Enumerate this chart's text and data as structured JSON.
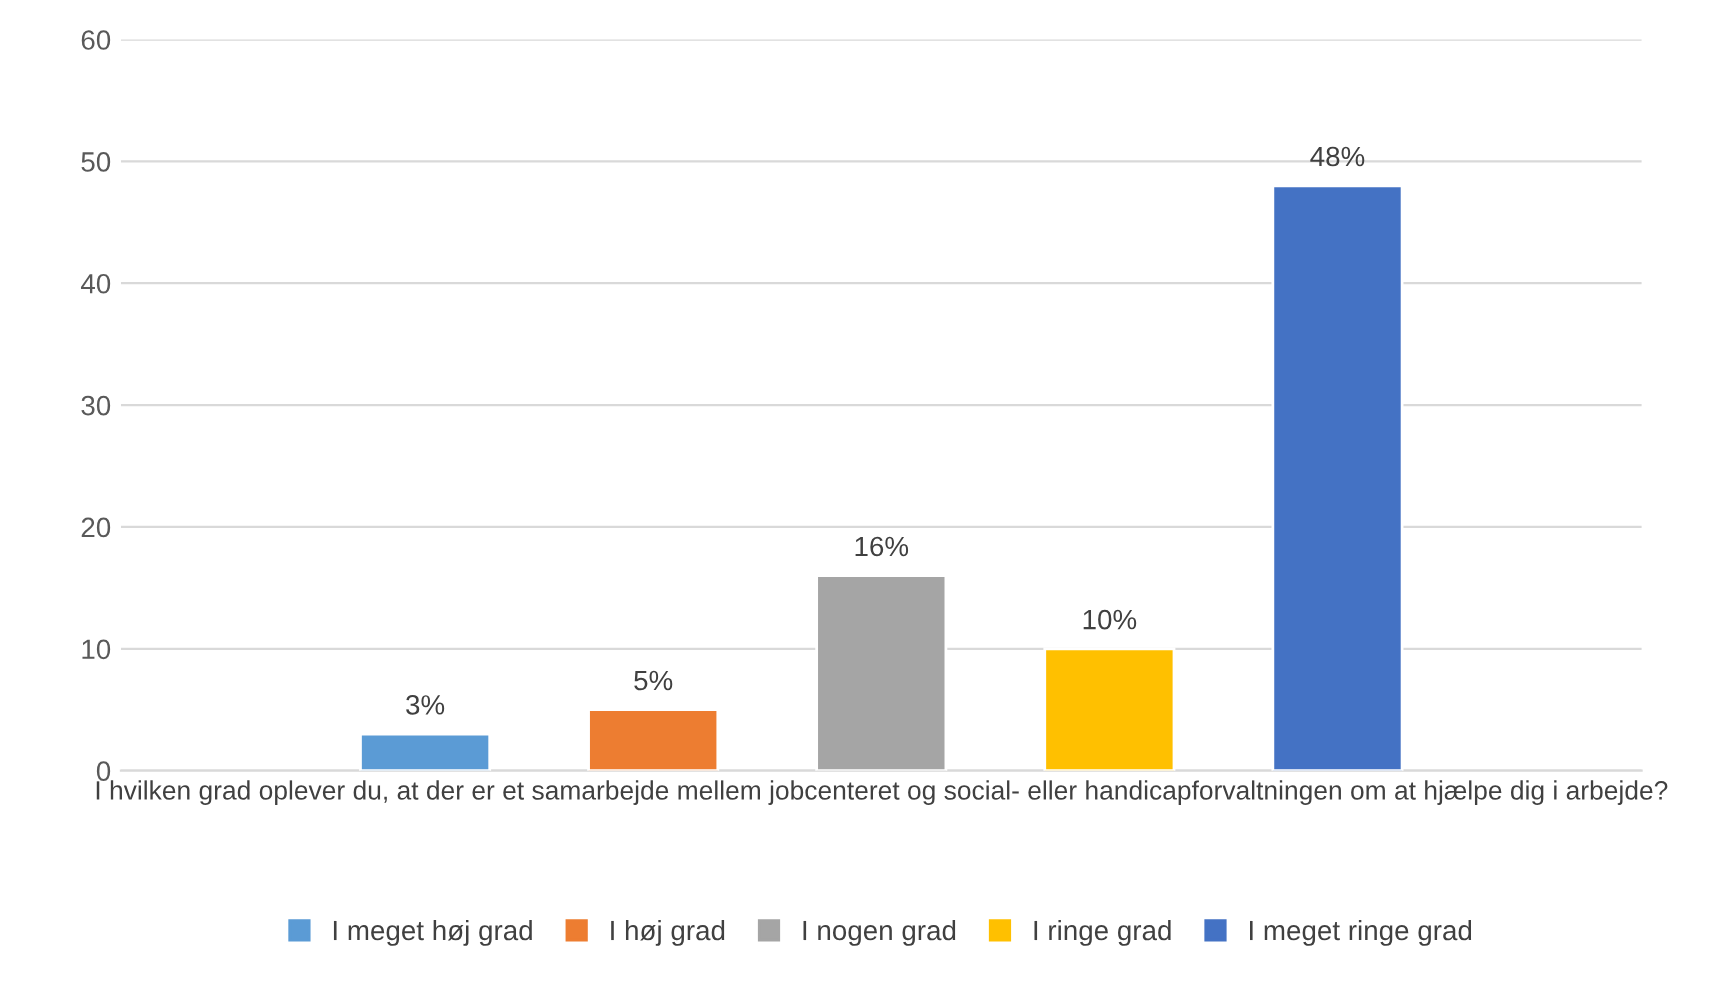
{
  "chart_data": {
    "type": "bar",
    "categories": [
      "I hvilken grad oplever du, at der er et samarbejde mellem jobcenteret og social- eller handicapforvaltningen om at hjælpe dig i arbejde?"
    ],
    "series": [
      {
        "name": "I meget høj grad",
        "color": "#5b9bd5",
        "values": [
          3
        ],
        "value_labels": [
          "3%"
        ]
      },
      {
        "name": "I høj grad",
        "color": "#ed7d31",
        "values": [
          5
        ],
        "value_labels": [
          "5%"
        ]
      },
      {
        "name": "I nogen grad",
        "color": "#a5a5a5",
        "values": [
          16
        ],
        "value_labels": [
          "16%"
        ]
      },
      {
        "name": "I ringe grad",
        "color": "#ffc000",
        "values": [
          10
        ],
        "value_labels": [
          "10%"
        ]
      },
      {
        "name": "I meget ringe grad",
        "color": "#4472c4",
        "values": [
          48
        ],
        "value_labels": [
          "48%"
        ]
      }
    ],
    "ylim": [
      0,
      60
    ],
    "yticks": [
      0,
      10,
      20,
      30,
      40,
      50,
      60
    ],
    "grid": "y",
    "legend": "bottom"
  }
}
